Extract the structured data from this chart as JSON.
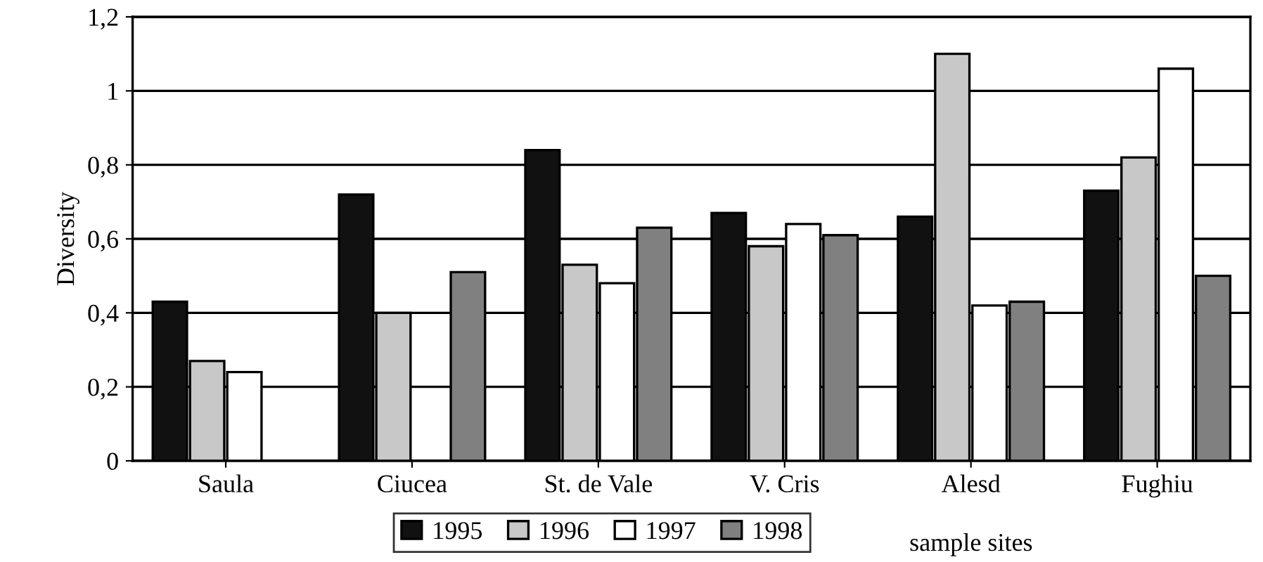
{
  "chart_data": {
    "type": "bar",
    "ylabel": "Diversity",
    "xlabel": "sample sites",
    "categories": [
      "Saula",
      "Ciucea",
      "St. de Vale",
      "V. Cris",
      "Alesd",
      "Fughiu"
    ],
    "series": [
      {
        "name": "1995",
        "color": "#111111",
        "values": [
          0.43,
          0.72,
          0.84,
          0.67,
          0.66,
          0.73
        ]
      },
      {
        "name": "1996",
        "color": "#c8c8c8",
        "values": [
          0.27,
          0.4,
          0.53,
          0.58,
          1.1,
          0.82
        ]
      },
      {
        "name": "1997",
        "color": "#ffffff",
        "values": [
          0.24,
          null,
          0.48,
          0.64,
          0.42,
          1.06
        ]
      },
      {
        "name": "1998",
        "color": "#808080",
        "values": [
          null,
          0.51,
          0.63,
          0.61,
          0.43,
          0.5
        ]
      }
    ],
    "ylim": [
      0,
      1.2
    ],
    "yticks": [
      0,
      {
        "value": 0.2,
        "label": "0,2"
      },
      {
        "value": 0.4,
        "label": "0,4"
      },
      {
        "value": 0.6,
        "label": "0,6"
      },
      {
        "value": 0.8,
        "label": "0,8"
      },
      1,
      {
        "value": 1.2,
        "label": "1,2"
      }
    ],
    "grid": "y",
    "legend": "bottom"
  }
}
